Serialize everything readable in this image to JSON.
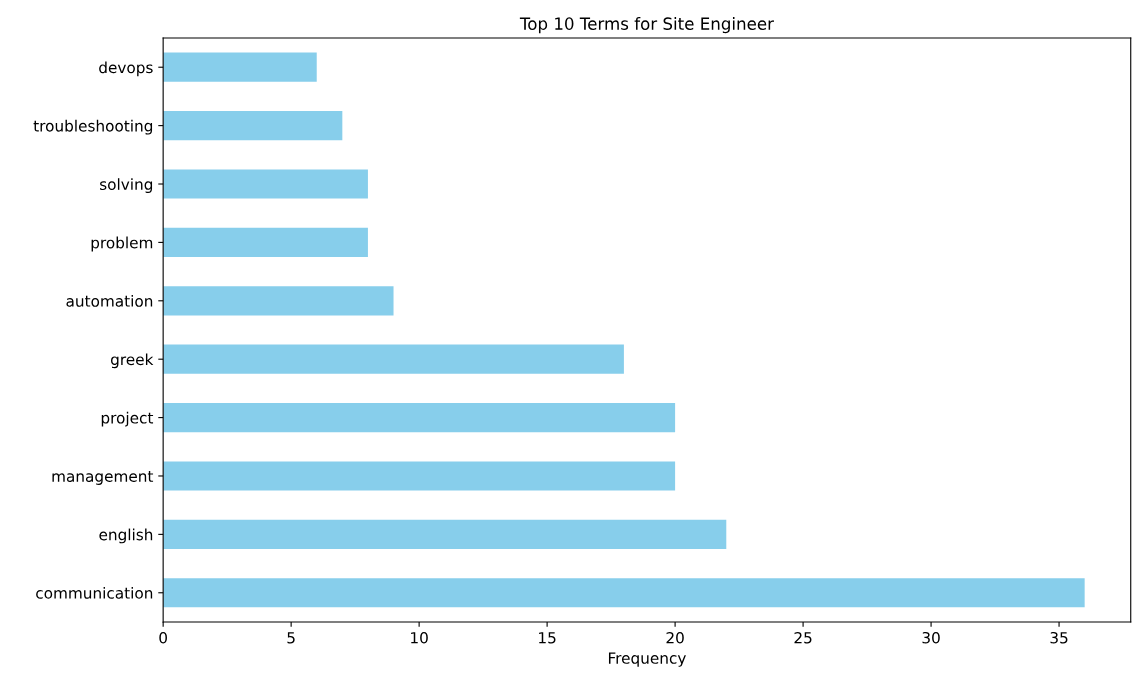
{
  "chart_data": {
    "type": "bar",
    "orientation": "horizontal",
    "title": "Top 10 Terms for Site Engineer",
    "xlabel": "Frequency",
    "categories": [
      "devops",
      "troubleshooting",
      "solving",
      "problem",
      "automation",
      "greek",
      "project",
      "management",
      "english",
      "communication"
    ],
    "values": [
      6,
      7,
      8,
      8,
      9,
      18,
      20,
      20,
      22,
      36
    ],
    "color": "#87ceeb",
    "xlim": [
      0,
      37.8
    ],
    "xticks": [
      0,
      5,
      10,
      15,
      20,
      25,
      30,
      35
    ],
    "grid": false,
    "legend": false
  }
}
